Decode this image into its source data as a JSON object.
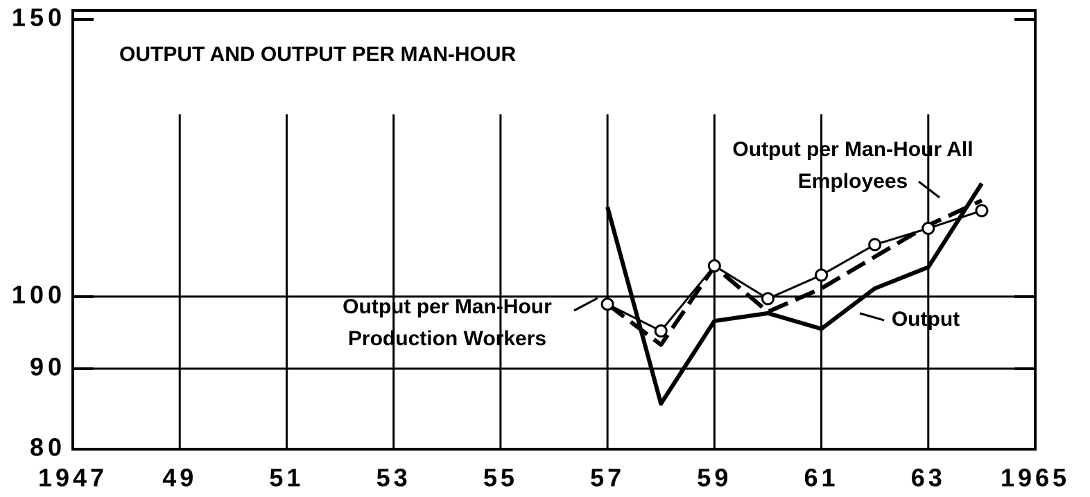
{
  "chart_data": {
    "type": "line",
    "title": "OUTPUT AND OUTPUT PER MAN-HOUR",
    "x": [
      1957,
      1958,
      1959,
      1960,
      1961,
      1962,
      1963,
      1964
    ],
    "series": [
      {
        "name": "Output",
        "color": "#000000",
        "style": "solid",
        "values": [
          114,
          85.5,
          96.5,
          97.6,
          95.4,
          101.2,
          104.4,
          118
        ]
      },
      {
        "name": "Output per Man-Hour Production Workers",
        "color": "#000000",
        "style": "dashed",
        "values": [
          98.9,
          93.2,
          104.5,
          97.8,
          101.2,
          106,
          111,
          115.1
        ]
      },
      {
        "name": "Output per Man-Hour All Employees",
        "color": "#000000",
        "style": "thin",
        "marker": "circle",
        "values": [
          98.9,
          95.1,
          104.6,
          99.7,
          103.2,
          107.9,
          110.5,
          113.4
        ]
      }
    ],
    "xlim": [
      1947,
      1965
    ],
    "xticks": [
      1947,
      {
        "value": 1949,
        "label": "49"
      },
      {
        "value": 1951,
        "label": "51"
      },
      {
        "value": 1953,
        "label": "53"
      },
      {
        "value": 1955,
        "label": "55"
      },
      {
        "value": 1957,
        "label": "57"
      },
      {
        "value": 1959,
        "label": "59"
      },
      {
        "value": 1961,
        "label": "61"
      },
      {
        "value": 1963,
        "label": "63"
      },
      1965
    ],
    "ylim": [
      80,
      150
    ],
    "yticks": [
      80,
      90,
      100,
      150
    ],
    "log_y": true,
    "grid": true
  }
}
